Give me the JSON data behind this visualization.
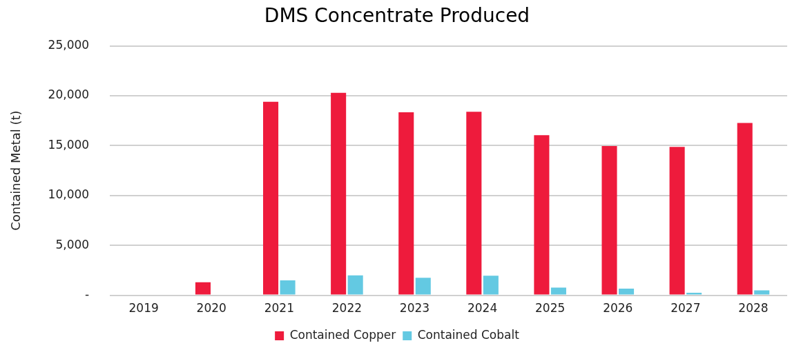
{
  "chart_data": {
    "type": "bar",
    "title": "DMS Concentrate Produced",
    "ylabel": "Contained Metal (t)",
    "categories": [
      "2019",
      "2020",
      "2021",
      "2022",
      "2023",
      "2024",
      "2025",
      "2026",
      "2027",
      "2028"
    ],
    "series": [
      {
        "name": "Contained Copper",
        "color": "#ee1b3c",
        "values": [
          0,
          1300,
          19400,
          20300,
          18350,
          18400,
          16050,
          14950,
          14880,
          17280
        ]
      },
      {
        "name": "Contained Cobalt",
        "color": "#63c9e2",
        "values": [
          0,
          0,
          1500,
          2000,
          1750,
          1950,
          760,
          660,
          250,
          490
        ]
      }
    ],
    "ylim": [
      0,
      25000
    ],
    "yticks": [
      {
        "value": 0,
        "label": "-"
      },
      {
        "value": 5000,
        "label": "5,000"
      },
      {
        "value": 10000,
        "label": "10,000"
      },
      {
        "value": 15000,
        "label": "15,000"
      },
      {
        "value": 20000,
        "label": "20,000"
      },
      {
        "value": 25000,
        "label": "25,000"
      }
    ],
    "grid": "y",
    "legend": "bottom"
  }
}
